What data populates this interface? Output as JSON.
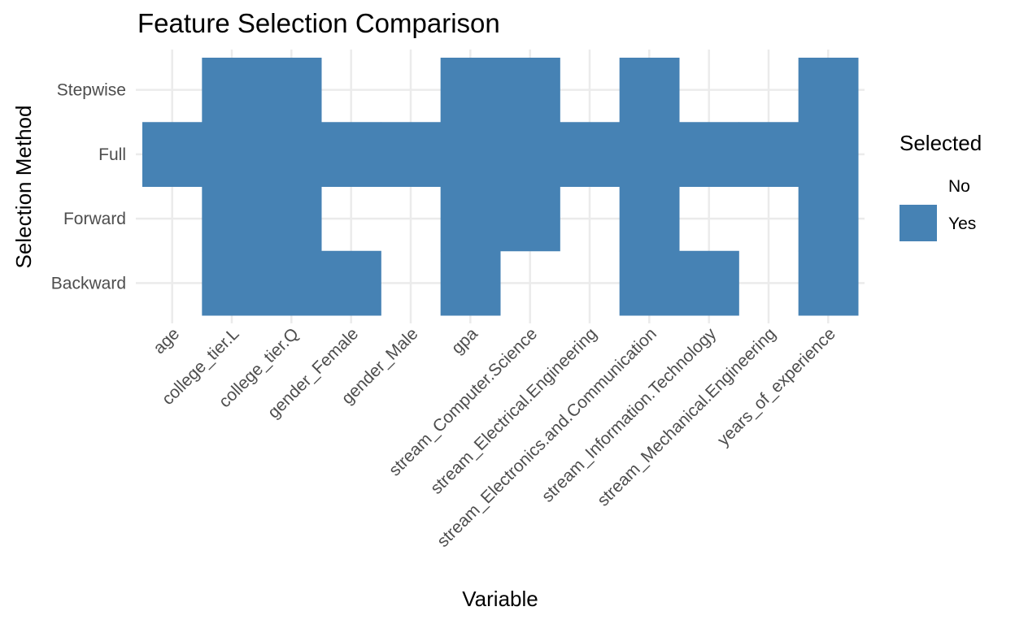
{
  "chart_data": {
    "type": "heatmap",
    "title": "Feature Selection Comparison",
    "xlabel": "Variable",
    "ylabel": "Selection Method",
    "x_categories": [
      "age",
      "college_tier.L",
      "college_tier.Q",
      "gender_Female",
      "gender_Male",
      "gpa",
      "stream_Computer.Science",
      "stream_Electrical.Engineering",
      "stream_Electronics.and.Communication",
      "stream_Information.Technology",
      "stream_Mechanical.Engineering",
      "years_of_experience"
    ],
    "y_categories": [
      "Stepwise",
      "Full",
      "Forward",
      "Backward"
    ],
    "cells": {
      "Stepwise": [
        "No",
        "Yes",
        "Yes",
        "No",
        "No",
        "Yes",
        "Yes",
        "No",
        "Yes",
        "No",
        "No",
        "Yes"
      ],
      "Full": [
        "Yes",
        "Yes",
        "Yes",
        "Yes",
        "Yes",
        "Yes",
        "Yes",
        "Yes",
        "Yes",
        "Yes",
        "Yes",
        "Yes"
      ],
      "Forward": [
        "No",
        "Yes",
        "Yes",
        "No",
        "No",
        "Yes",
        "Yes",
        "No",
        "Yes",
        "No",
        "No",
        "Yes"
      ],
      "Backward": [
        "No",
        "Yes",
        "Yes",
        "Yes",
        "No",
        "Yes",
        "No",
        "No",
        "Yes",
        "Yes",
        "No",
        "Yes"
      ]
    },
    "legend": {
      "title": "Selected",
      "placement": "right",
      "entries": [
        {
          "label": "No",
          "color": "#ffffff"
        },
        {
          "label": "Yes",
          "color": "#4682b4"
        }
      ]
    },
    "grid": true
  }
}
